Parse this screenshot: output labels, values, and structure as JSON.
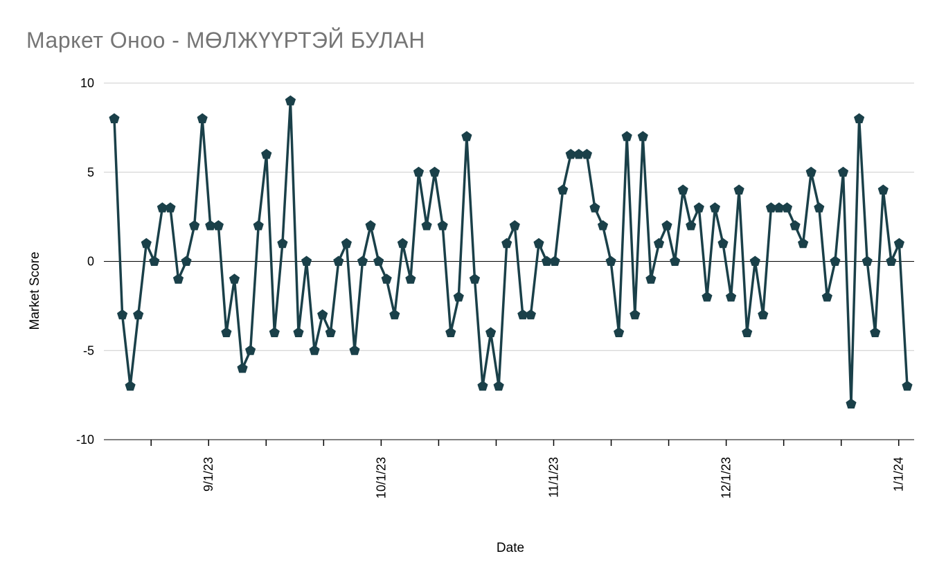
{
  "chart_data": {
    "type": "line",
    "title": "Маркет Оноо - МӨЛЖҮҮРТЭЙ БУЛАН",
    "xlabel": "Date",
    "ylabel": "Market Score",
    "ylim": [
      -10,
      10
    ],
    "y_ticks": [
      10,
      5,
      0,
      -5,
      -10
    ],
    "grid": "horizontal",
    "legend": "none",
    "marker": "pentagon",
    "x_ticks": [
      {
        "index": 4.6,
        "label": ""
      },
      {
        "index": 11.78,
        "label": "9/1/23"
      },
      {
        "index": 18.96,
        "label": ""
      },
      {
        "index": 26.14,
        "label": ""
      },
      {
        "index": 33.32,
        "label": "10/1/23"
      },
      {
        "index": 40.5,
        "label": ""
      },
      {
        "index": 47.68,
        "label": ""
      },
      {
        "index": 54.86,
        "label": "11/1/23"
      },
      {
        "index": 62.04,
        "label": ""
      },
      {
        "index": 69.22,
        "label": ""
      },
      {
        "index": 76.4,
        "label": "12/1/23"
      },
      {
        "index": 83.58,
        "label": ""
      },
      {
        "index": 90.76,
        "label": ""
      },
      {
        "index": 97.94,
        "label": "1/1/24"
      }
    ],
    "series": [
      {
        "name": "Market Score",
        "color": "#1a4049",
        "values": [
          8,
          -3,
          -7,
          -3,
          1,
          0,
          3,
          3,
          -1,
          0,
          2,
          8,
          2,
          2,
          -4,
          -1,
          -6,
          -5,
          2,
          6,
          -4,
          1,
          9,
          -4,
          0,
          -5,
          -3,
          -4,
          0,
          1,
          -5,
          0,
          2,
          0,
          -1,
          -3,
          1,
          -1,
          5,
          2,
          5,
          2,
          -4,
          -2,
          7,
          -1,
          -7,
          -4,
          -7,
          1,
          2,
          -3,
          -3,
          1,
          0,
          0,
          4,
          6,
          6,
          6,
          3,
          2,
          0,
          -4,
          7,
          -3,
          7,
          -1,
          1,
          2,
          0,
          4,
          2,
          3,
          -2,
          3,
          1,
          -2,
          4,
          -4,
          0,
          -3,
          3,
          3,
          3,
          2,
          1,
          5,
          3,
          -2,
          0,
          5,
          -8,
          8,
          0,
          -4,
          4,
          0,
          1,
          -7
        ]
      }
    ]
  },
  "colors": {
    "line": "#1a4049",
    "grid": "#cccccc",
    "axis": "#000000",
    "zero_line": "#000000",
    "title": "#757575",
    "text": "#000000",
    "background": "#ffffff"
  }
}
